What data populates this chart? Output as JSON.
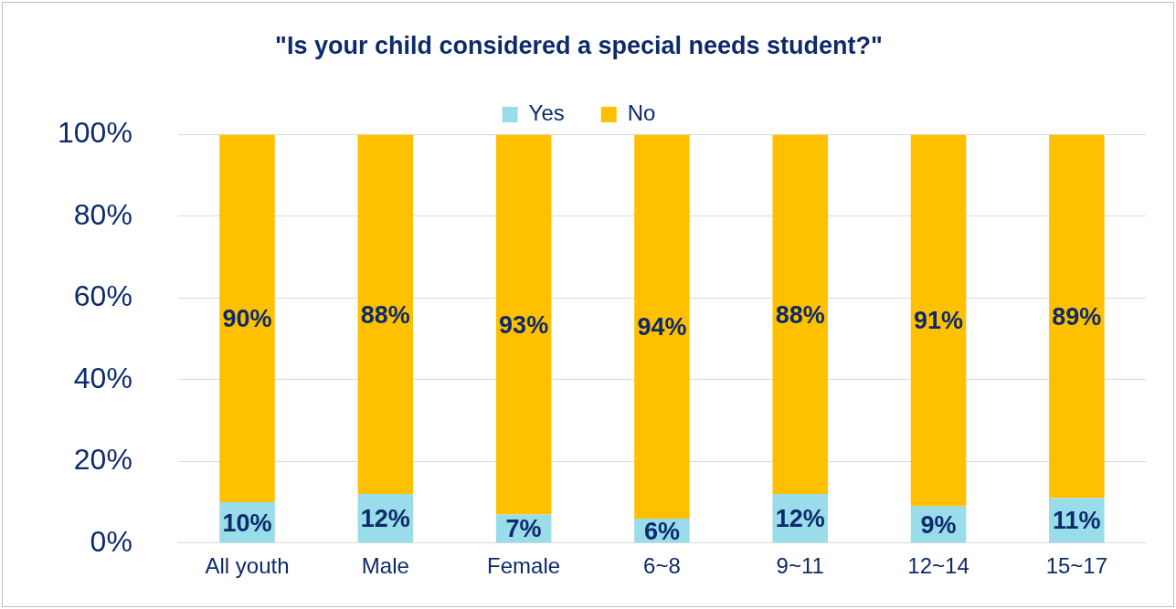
{
  "chart_data": {
    "type": "bar",
    "title": "\"Is your child considered a special needs student?\"",
    "categories": [
      "All youth",
      "Male",
      "Female",
      "6~8",
      "9~11",
      "12~14",
      "15~17"
    ],
    "stacked": true,
    "series": [
      {
        "name": "Yes",
        "color": "#99dcea",
        "values": [
          10,
          12,
          7,
          6,
          12,
          9,
          11
        ],
        "value_labels": [
          "10%",
          "12%",
          "7%",
          "6%",
          "12%",
          "9%",
          "11%"
        ]
      },
      {
        "name": "No",
        "color": "#ffc000",
        "values": [
          90,
          88,
          93,
          94,
          88,
          91,
          89
        ],
        "value_labels": [
          "90%",
          "88%",
          "93%",
          "94%",
          "88%",
          "91%",
          "89%"
        ]
      }
    ],
    "ylim": [
      0,
      100
    ],
    "yticks": [
      {
        "value": 0,
        "label": "0%"
      },
      {
        "value": 20,
        "label": "20%"
      },
      {
        "value": 40,
        "label": "40%"
      },
      {
        "value": 60,
        "label": "60%"
      },
      {
        "value": 80,
        "label": "80%"
      },
      {
        "value": 100,
        "label": "100%"
      }
    ],
    "grid": "y",
    "legend": "top"
  }
}
